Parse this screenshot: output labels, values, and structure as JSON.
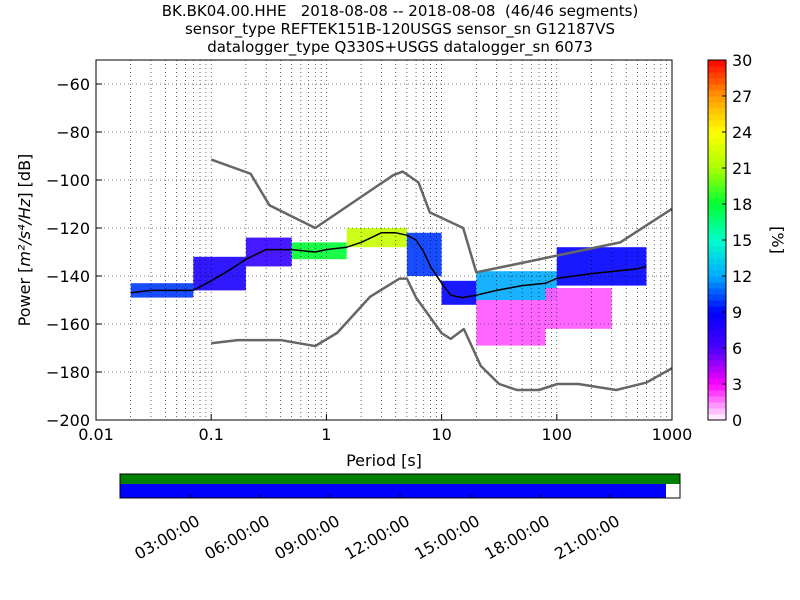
{
  "titles": [
    "BK.BK04.00.HHE   2018-08-08 -- 2018-08-08  (46/46 segments)",
    "sensor_type REFTEK151B-120USGS sensor_sn G12187VS",
    "datalogger_type Q330S+USGS datalogger_sn 6073"
  ],
  "chart_data": {
    "type": "heatmap",
    "xscale": "log",
    "xlabel": "Period [s]",
    "ylabel": "Power [m²/s⁴/Hz] [dB]",
    "ylabel_parts": {
      "prefix": "Power [",
      "unit": "m²/s⁴/Hz",
      "suffix": "] [dB]"
    },
    "xlim": [
      0.01,
      1000
    ],
    "ylim": [
      -200,
      -50
    ],
    "xtick_values": [
      0.01,
      0.1,
      1,
      10,
      100,
      1000
    ],
    "xticks": [
      "0.01",
      "0.1",
      "1",
      "10",
      "100",
      "1000"
    ],
    "ytick_values": [
      -200,
      -180,
      -160,
      -140,
      -120,
      -100,
      -80,
      -60
    ],
    "yticks": [
      "−200",
      "−180",
      "−160",
      "−140",
      "−120",
      "−100",
      "−80",
      "−60"
    ],
    "grid": true,
    "colorbar": {
      "label": "[%]",
      "range": [
        0,
        30
      ],
      "tick_values": [
        0,
        3,
        6,
        9,
        12,
        15,
        18,
        21,
        24,
        27,
        30
      ],
      "ticks": [
        "0",
        "3",
        "6",
        "9",
        "12",
        "15",
        "18",
        "21",
        "24",
        "27",
        "30"
      ],
      "colormap": [
        "#ffffff",
        "#ff00ff",
        "#4b00ff",
        "#0000ff",
        "#00aaff",
        "#00ffcc",
        "#00ff33",
        "#aaff00",
        "#ffff00",
        "#ff9900",
        "#ff0000"
      ]
    },
    "noise_model_high": {
      "x": [
        0.1,
        0.22,
        0.32,
        0.8,
        3.8,
        4.6,
        6.3,
        7.9,
        15.4,
        20,
        354.8,
        1000
      ],
      "y": [
        -91.5,
        -97.4,
        -110.5,
        -120,
        -98,
        -96.5,
        -101,
        -113.5,
        -120,
        -138.5,
        -126,
        -112
      ]
    },
    "noise_model_low": {
      "x": [
        0.1,
        0.17,
        0.4,
        0.8,
        1.24,
        2.4,
        4.3,
        5,
        6,
        10,
        12,
        15.6,
        21.9,
        31.6,
        45,
        70,
        101,
        154,
        328,
        600,
        1000
      ],
      "y": [
        -168,
        -166.7,
        -166.7,
        -169.2,
        -163.7,
        -148.6,
        -141.1,
        -141.1,
        -149,
        -163.8,
        -166.2,
        -162.1,
        -177.5,
        -185,
        -187.5,
        -187.5,
        -185,
        -185,
        -187.5,
        -184.4,
        -178.4
      ]
    },
    "median": {
      "x": [
        0.02,
        0.03,
        0.05,
        0.07,
        0.1,
        0.15,
        0.2,
        0.3,
        0.5,
        0.8,
        1,
        1.5,
        2,
        3,
        4,
        5,
        6,
        7,
        8,
        10,
        12,
        15,
        20,
        30,
        50,
        80,
        100,
        200,
        500,
        600
      ],
      "y": [
        -147,
        -146,
        -146,
        -146,
        -142,
        -137,
        -133,
        -129,
        -129,
        -130,
        -129,
        -128,
        -126,
        -122,
        -122,
        -123,
        -125,
        -130,
        -136,
        -143,
        -148,
        -149,
        -148,
        -146,
        -144,
        -143,
        -141,
        -139,
        -137,
        -136
      ]
    },
    "density_clusters": [
      {
        "x": [
          0.02,
          0.07
        ],
        "y": [
          -149,
          -143
        ],
        "percent": 10
      },
      {
        "x": [
          0.07,
          0.2
        ],
        "y": [
          -146,
          -132
        ],
        "percent": 8
      },
      {
        "x": [
          0.2,
          0.5
        ],
        "y": [
          -136,
          -124
        ],
        "percent": 7
      },
      {
        "x": [
          0.5,
          1.5
        ],
        "y": [
          -133,
          -126
        ],
        "percent": 18
      },
      {
        "x": [
          1.5,
          5
        ],
        "y": [
          -128,
          -120
        ],
        "percent": 22
      },
      {
        "x": [
          5,
          10
        ],
        "y": [
          -140,
          -122
        ],
        "percent": 10
      },
      {
        "x": [
          10,
          20
        ],
        "y": [
          -152,
          -142
        ],
        "percent": 9
      },
      {
        "x": [
          20,
          100
        ],
        "y": [
          -150,
          -138
        ],
        "percent": 12
      },
      {
        "x": [
          100,
          600
        ],
        "y": [
          -144,
          -128
        ],
        "percent": 9
      },
      {
        "x": [
          20,
          80
        ],
        "y": [
          -169,
          -150
        ],
        "percent": 2
      },
      {
        "x": [
          80,
          300
        ],
        "y": [
          -162,
          -145
        ],
        "percent": 2
      }
    ],
    "time_axis": {
      "ticks": [
        "03:00:00",
        "06:00:00",
        "09:00:00",
        "12:00:00",
        "15:00:00",
        "18:00:00",
        "21:00:00"
      ],
      "tick_hours": [
        3,
        6,
        9,
        12,
        15,
        18,
        21
      ],
      "range_hours": [
        0,
        24
      ],
      "coverage_end_hour": 23.4,
      "data_color": "#0000ff",
      "gap_color": "#008000"
    }
  }
}
